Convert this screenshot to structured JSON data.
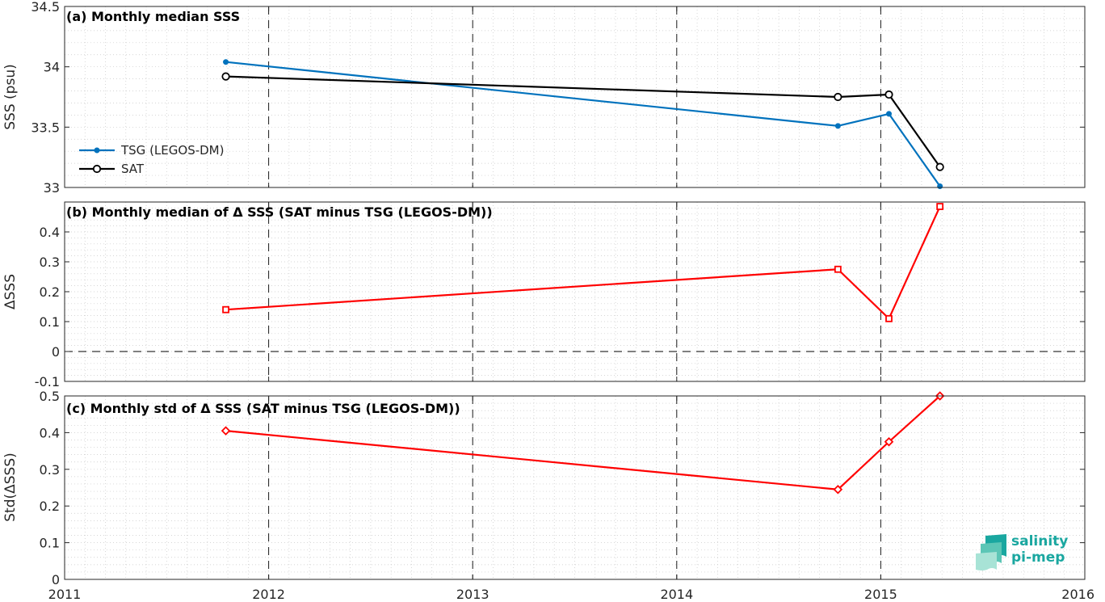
{
  "x_axis": {
    "range": [
      2011,
      2016
    ],
    "ticks": [
      2011,
      2012,
      2013,
      2014,
      2015,
      2016
    ],
    "tick_labels": [
      "2011",
      "2012",
      "2013",
      "2014",
      "2015",
      "2016"
    ]
  },
  "logo": {
    "line1": "salinity",
    "line2": "pi-mep"
  },
  "colors": {
    "tsg": "#0072BD",
    "sat": "#000000",
    "delta": "#FF0000",
    "zero_line": "#000000"
  },
  "chart_data": [
    {
      "type": "line",
      "title": "(a) Monthly median SSS",
      "xlabel": "",
      "ylabel": "SSS (psu)",
      "xlim": [
        2011,
        2016
      ],
      "ylim": [
        33,
        34.5
      ],
      "yticks": [
        33,
        33.5,
        34,
        34.5
      ],
      "ytick_labels": [
        "33",
        "33.5",
        "34",
        "34.5"
      ],
      "grid": true,
      "legend": "left",
      "series": [
        {
          "name": "TSG (LEGOS-DM)",
          "marker": "dot",
          "color": "#0072BD",
          "x": [
            2011.79,
            2014.79,
            2015.04,
            2015.29
          ],
          "y": [
            34.04,
            33.51,
            33.61,
            33.01
          ]
        },
        {
          "name": "SAT",
          "marker": "circle",
          "color": "#000000",
          "x": [
            2011.79,
            2014.79,
            2015.04,
            2015.29
          ],
          "y": [
            33.92,
            33.75,
            33.77,
            33.17
          ]
        }
      ]
    },
    {
      "type": "line",
      "title": "(b) Monthly median of Δ SSS (SAT minus TSG (LEGOS-DM))",
      "xlabel": "",
      "ylabel": "ΔSSS",
      "xlim": [
        2011,
        2016
      ],
      "ylim": [
        -0.1,
        0.5
      ],
      "yticks": [
        -0.1,
        0,
        0.1,
        0.2,
        0.3,
        0.4
      ],
      "ytick_labels": [
        "-0.1",
        "0",
        "0.1",
        "0.2",
        "0.3",
        "0.4"
      ],
      "grid": true,
      "series": [
        {
          "marker": "square",
          "color": "#FF0000",
          "x": [
            2011.79,
            2014.79,
            2015.04,
            2015.29
          ],
          "y": [
            0.14,
            0.275,
            0.11,
            0.485
          ]
        }
      ]
    },
    {
      "type": "line",
      "title": "(c) Monthly std of Δ SSS (SAT minus TSG (LEGOS-DM))",
      "xlabel": "",
      "ylabel": "Std(ΔSSS)",
      "xlim": [
        2011,
        2016
      ],
      "ylim": [
        0,
        0.5
      ],
      "yticks": [
        0,
        0.1,
        0.2,
        0.3,
        0.4,
        0.5
      ],
      "ytick_labels": [
        "0",
        "0.1",
        "0.2",
        "0.3",
        "0.4",
        "0.5"
      ],
      "grid": true,
      "series": [
        {
          "marker": "diamond",
          "color": "#FF0000",
          "x": [
            2011.79,
            2014.79,
            2015.04,
            2015.29
          ],
          "y": [
            0.405,
            0.245,
            0.375,
            0.5
          ]
        }
      ]
    }
  ]
}
